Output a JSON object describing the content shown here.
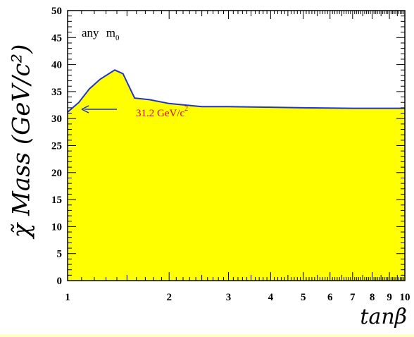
{
  "chart_data": {
    "type": "area",
    "title": "",
    "xlabel": "tanβ",
    "ylabel": "χ̃ Mass (GeV/c²)",
    "x_scale": "log",
    "xlim": [
      1,
      10
    ],
    "ylim": [
      0,
      50
    ],
    "x_ticks": [
      "1",
      "2",
      "3",
      "4",
      "5",
      "6",
      "7",
      "8",
      "9",
      "10"
    ],
    "y_ticks": [
      "0",
      "5",
      "10",
      "15",
      "20",
      "25",
      "30",
      "35",
      "40",
      "45",
      "50"
    ],
    "series": [
      {
        "name": "",
        "x": [
          1.0,
          1.08,
          1.16,
          1.25,
          1.38,
          1.46,
          1.58,
          1.75,
          2.0,
          2.5,
          3.0,
          4.0,
          5.0,
          7.0,
          10.0
        ],
        "values": [
          31.2,
          33.0,
          35.5,
          37.3,
          39.0,
          38.3,
          33.8,
          33.5,
          32.8,
          32.2,
          32.2,
          32.1,
          32.0,
          31.9,
          31.9
        ],
        "fill": "#ffff00",
        "line": "#2233cc"
      }
    ],
    "annotations": [
      {
        "text": "any",
        "sub": "m",
        "subscript": "0"
      },
      {
        "text": "31.2 GeV/c",
        "sup": "2",
        "color": "#e00000"
      }
    ],
    "grid": false
  }
}
